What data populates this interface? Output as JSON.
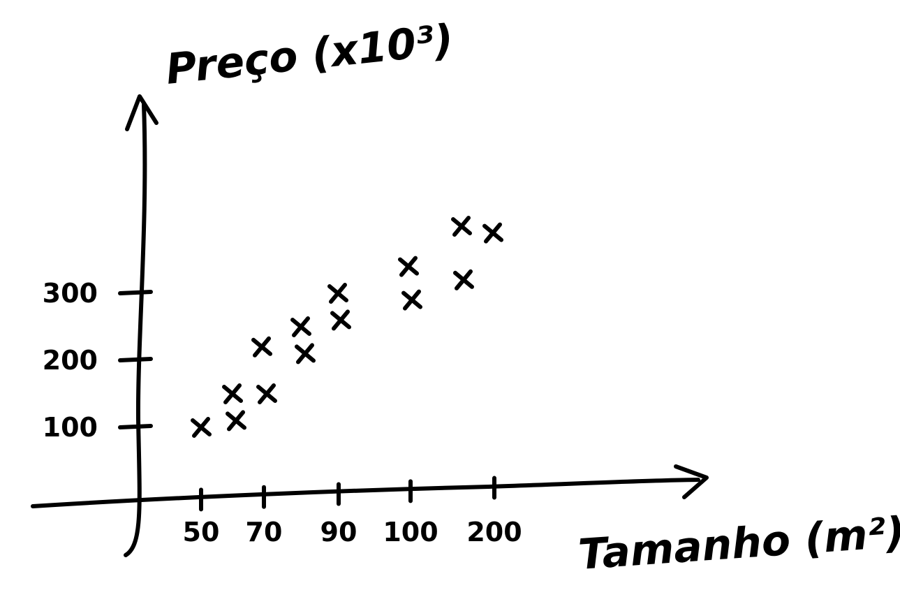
{
  "chart_data": {
    "type": "scatter",
    "xlabel": "Tamanho (m²)",
    "ylabel": "Preço (x10³)",
    "x_ticks": [
      "50",
      "70",
      "90",
      "100",
      "200"
    ],
    "y_ticks": [
      "100",
      "200",
      "300"
    ],
    "points": [
      {
        "x": "50",
        "y": 100
      },
      {
        "x": "60",
        "y": 110
      },
      {
        "x": "60",
        "y": 150
      },
      {
        "x": "70",
        "y": 150
      },
      {
        "x": "70",
        "y": 220
      },
      {
        "x": "80",
        "y": 210
      },
      {
        "x": "80",
        "y": 250
      },
      {
        "x": "90",
        "y": 260
      },
      {
        "x": "90",
        "y": 300
      },
      {
        "x": "100",
        "y": 290
      },
      {
        "x": "100",
        "y": 340
      },
      {
        "x": "150",
        "y": 320
      },
      {
        "x": "150",
        "y": 400
      },
      {
        "x": "200",
        "y": 390
      }
    ],
    "grid": false,
    "legend": "none"
  }
}
